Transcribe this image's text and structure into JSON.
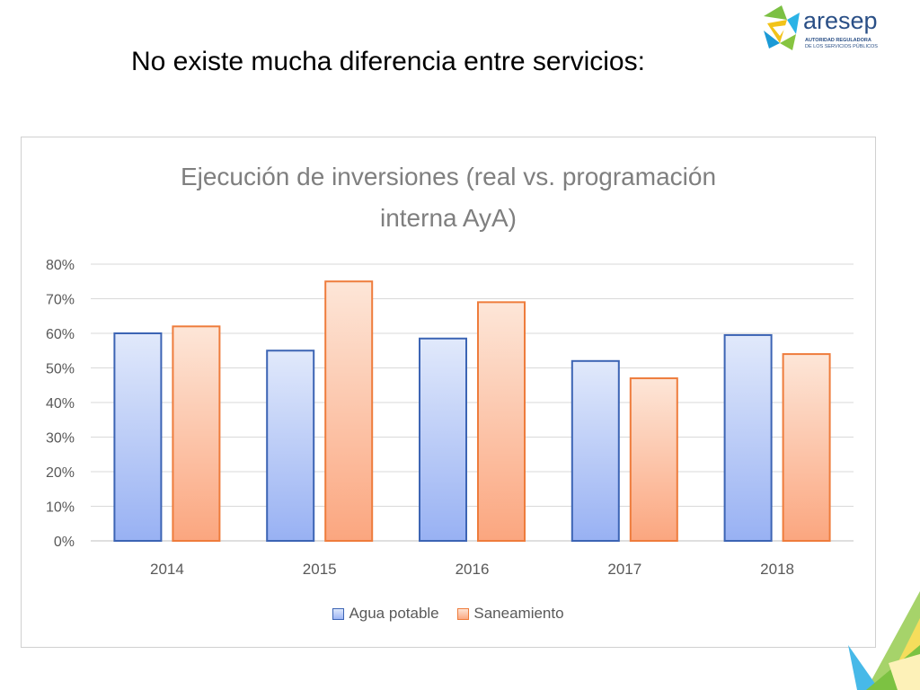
{
  "slide": {
    "title": "No existe mucha diferencia entre servicios:"
  },
  "logo": {
    "name": "aresep",
    "line1": "AUTORIDAD REGULADORA",
    "line2": "DE LOS SERVICIOS PÚBLICOS"
  },
  "colors": {
    "series1_border": "#3c64b4",
    "series2_border": "#ee7c3c",
    "gridline": "#d9d9d9",
    "text": "#595959"
  },
  "chart_data": {
    "type": "bar",
    "title_line1": "Ejecución de inversiones (real vs. programación",
    "title_line2": "interna AyA)",
    "categories": [
      "2014",
      "2015",
      "2016",
      "2017",
      "2018"
    ],
    "series": [
      {
        "name": "Agua potable",
        "values": [
          60,
          55,
          58.5,
          52,
          59.5
        ]
      },
      {
        "name": "Saneamiento",
        "values": [
          62,
          75,
          69,
          47,
          54
        ]
      }
    ],
    "y_ticks": [
      "0%",
      "10%",
      "20%",
      "30%",
      "40%",
      "50%",
      "60%",
      "70%",
      "80%"
    ],
    "ylim": [
      0,
      80
    ],
    "y_unit": "%",
    "grid": true,
    "legend_position": "bottom"
  }
}
